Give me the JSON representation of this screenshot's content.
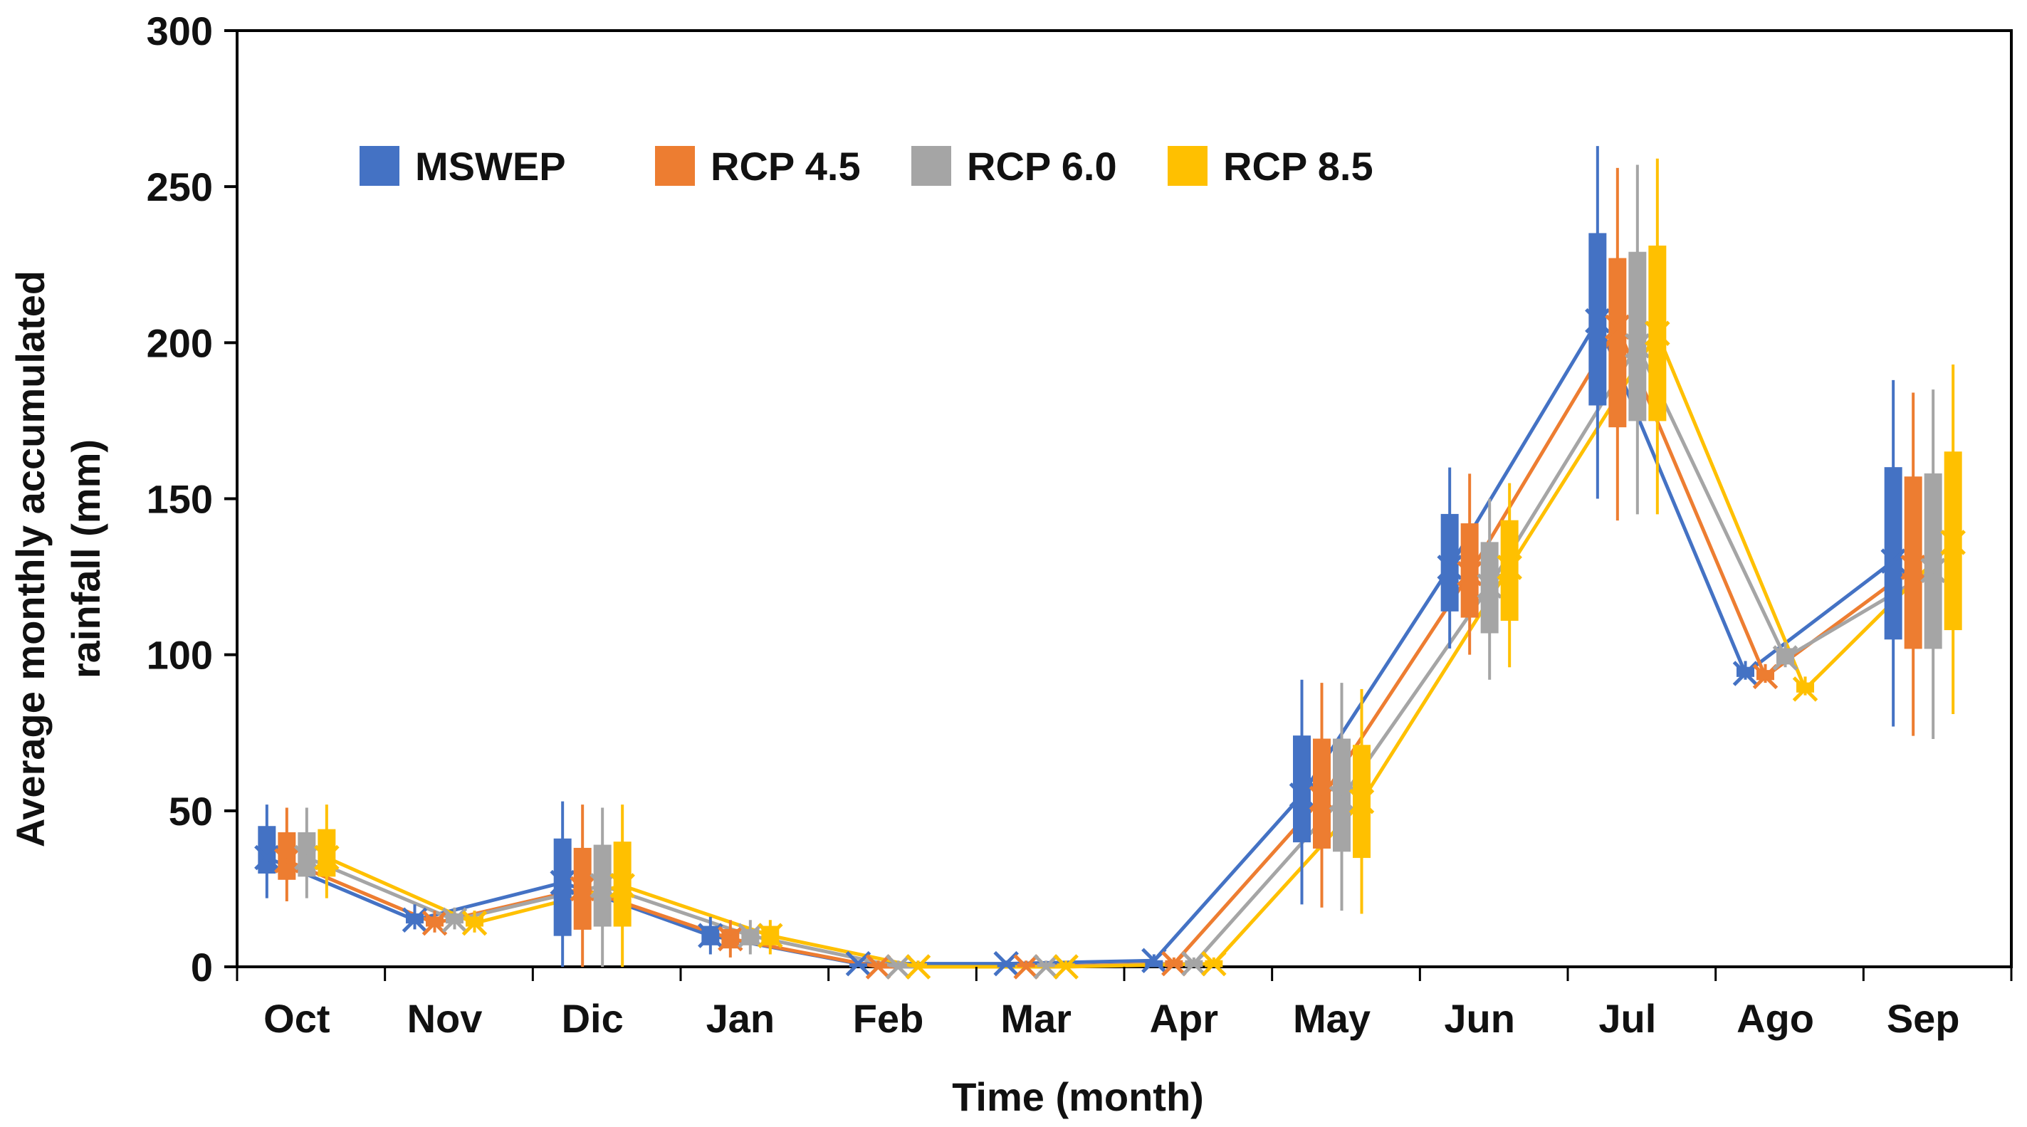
{
  "chart_data": {
    "type": "box-line",
    "title": "",
    "xlabel": "Time (month)",
    "ylabel_line1": "Average monthly accumulated",
    "ylabel_line2": "rainfall (mm)",
    "ylim": [
      0,
      300
    ],
    "yticks": [
      0,
      50,
      100,
      150,
      200,
      250,
      300
    ],
    "categories": [
      "Oct",
      "Nov",
      "Dic",
      "Jan",
      "Feb",
      "Mar",
      "Apr",
      "May",
      "Jun",
      "Jul",
      "Ago",
      "Sep"
    ],
    "grid": false,
    "legend_position": "top-left",
    "series": [
      {
        "name": "MSWEP",
        "color": "#4472C4",
        "mean": [
          35,
          15,
          27,
          10,
          1,
          1,
          2,
          55,
          128,
          207,
          94,
          130
        ],
        "q1": [
          30,
          14,
          10,
          7,
          0,
          0,
          0,
          40,
          114,
          180,
          93,
          105
        ],
        "q3": [
          45,
          17,
          41,
          13,
          1,
          1,
          2,
          74,
          145,
          235,
          96,
          160
        ],
        "whisker_low": [
          22,
          12,
          0,
          4,
          0,
          0,
          0,
          20,
          102,
          150,
          92,
          77
        ],
        "whisker_high": [
          52,
          20,
          53,
          16,
          2,
          2,
          4,
          92,
          160,
          263,
          98,
          188
        ]
      },
      {
        "name": "RCP 4.5",
        "color": "#ED7D31",
        "mean": [
          34,
          14,
          25,
          9,
          0,
          0,
          1,
          54,
          126,
          205,
          93,
          128
        ],
        "q1": [
          28,
          13,
          12,
          6,
          0,
          0,
          0,
          38,
          112,
          173,
          92,
          102
        ],
        "q3": [
          43,
          16,
          38,
          12,
          1,
          1,
          2,
          73,
          142,
          227,
          95,
          157
        ],
        "whisker_low": [
          21,
          11,
          0,
          3,
          0,
          0,
          0,
          19,
          100,
          143,
          91,
          74
        ],
        "whisker_high": [
          51,
          18,
          52,
          15,
          2,
          2,
          3,
          91,
          158,
          256,
          97,
          184
        ]
      },
      {
        "name": "RCP 6.0",
        "color": "#A5A5A5",
        "mean": [
          35,
          15,
          26,
          10,
          0,
          0,
          1,
          54,
          122,
          199,
          99,
          127
        ],
        "q1": [
          29,
          14,
          13,
          7,
          0,
          0,
          0,
          37,
          107,
          175,
          97,
          102
        ],
        "q3": [
          43,
          17,
          39,
          12,
          1,
          1,
          2,
          73,
          136,
          229,
          102,
          158
        ],
        "whisker_low": [
          22,
          12,
          0,
          4,
          0,
          0,
          0,
          18,
          92,
          145,
          96,
          73
        ],
        "whisker_high": [
          51,
          19,
          51,
          15,
          2,
          2,
          3,
          91,
          150,
          257,
          104,
          185
        ]
      },
      {
        "name": "RCP 8.5",
        "color": "#FFC000",
        "mean": [
          35,
          14,
          26,
          10,
          0,
          0,
          1,
          53,
          128,
          203,
          89,
          136
        ],
        "q1": [
          29,
          13,
          13,
          7,
          0,
          0,
          0,
          35,
          111,
          175,
          88,
          108
        ],
        "q3": [
          44,
          16,
          40,
          13,
          1,
          1,
          2,
          71,
          143,
          231,
          91,
          165
        ],
        "whisker_low": [
          22,
          11,
          0,
          4,
          0,
          0,
          0,
          17,
          96,
          145,
          87,
          81
        ],
        "whisker_high": [
          52,
          18,
          52,
          15,
          2,
          2,
          3,
          89,
          155,
          259,
          93,
          193
        ]
      }
    ]
  }
}
